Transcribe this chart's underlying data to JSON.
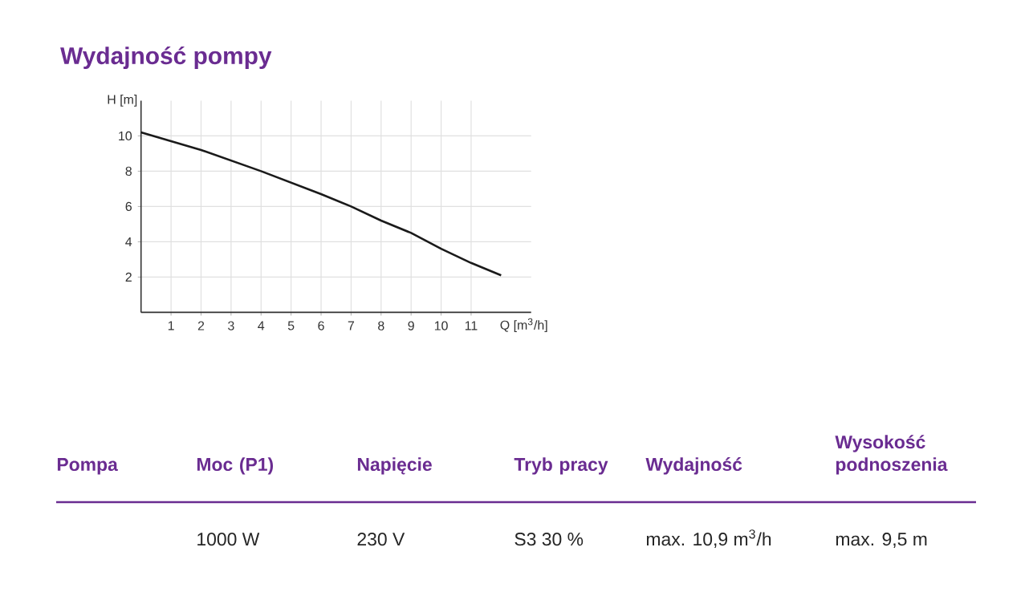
{
  "chart_data": [
    {
      "type": "line",
      "title": "Wydajność pompy",
      "color": "#1a1a1a",
      "grid": true,
      "x": [
        0,
        2,
        4,
        6,
        7,
        8,
        9,
        10,
        11,
        12
      ],
      "values": [
        10.2,
        9.2,
        8.0,
        6.7,
        6.0,
        5.2,
        4.5,
        3.6,
        2.8,
        2.1
      ],
      "xlim": [
        0,
        13
      ],
      "ylim": [
        0,
        12
      ],
      "xlabel": "Q [m$^{3}$/h]",
      "ylabel": "H [m]",
      "xticks": [
        1,
        2,
        3,
        4,
        5,
        6,
        7,
        8,
        9,
        10,
        11
      ],
      "yticks": [
        2,
        4,
        6,
        8,
        10
      ]
    },
    {
      "type": "other",
      "color": "#6a2c91",
      "categories": [
        "Pompa",
        "Moc (P1)",
        "Napięcie",
        "Tryb pracy",
        "Wydajność",
        "Wysokość podnoszenia"
      ],
      "annotations": [
        "1000 W",
        "230 V",
        "S3 30 %",
        "max. 10,9 m$^{3}$/h",
        "max. 9,5 m"
      ]
    }
  ]
}
